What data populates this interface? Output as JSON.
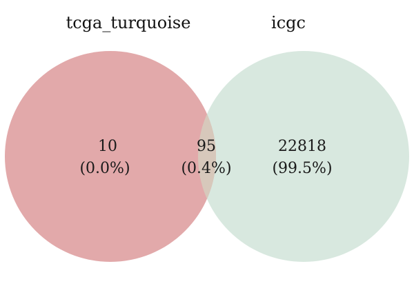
{
  "sets": [
    {
      "name": "tcga_turquoise",
      "color": "#e2a9aa"
    },
    {
      "name": "icgc",
      "color": "#d8e8df"
    }
  ],
  "overlap_color": "#d7c8bb",
  "regions": {
    "left_only": {
      "count": "10",
      "percent": "(0.0%)"
    },
    "intersection": {
      "count": "95",
      "percent": "(0.4%)"
    },
    "right_only": {
      "count": "22818",
      "percent": "(99.5%)"
    }
  }
}
